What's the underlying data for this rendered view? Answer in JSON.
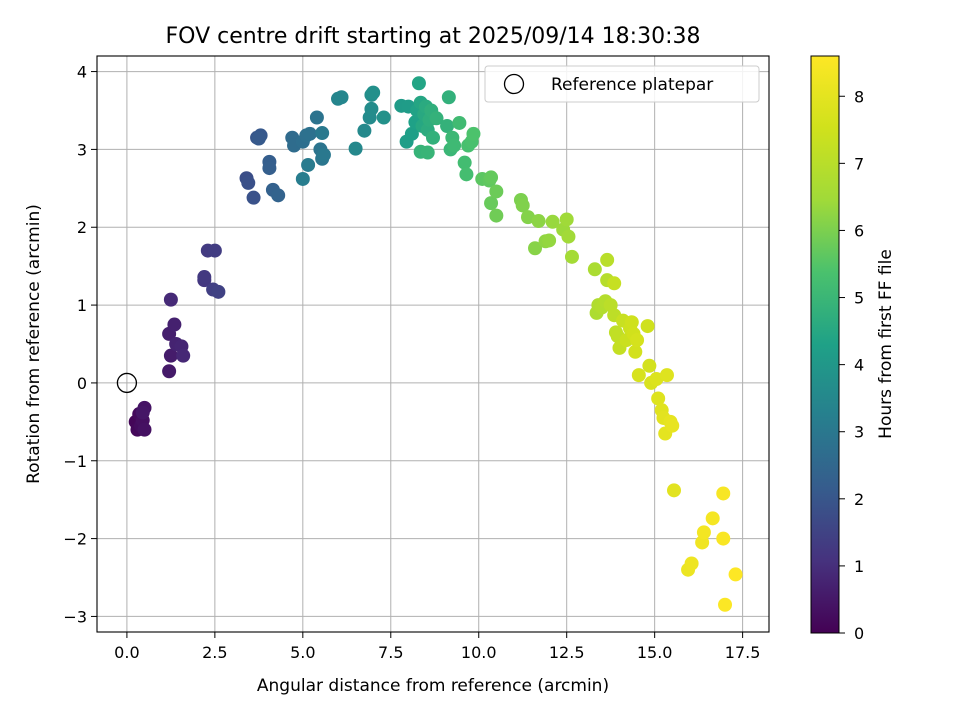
{
  "chart_data": {
    "type": "scatter",
    "title": "FOV centre drift starting at 2025/09/14 18:30:38",
    "xlabel": "Angular distance from reference (arcmin)",
    "ylabel": "Rotation from reference (arcmin)",
    "xlim": [
      -0.85,
      18.25
    ],
    "ylim": [
      -3.2,
      4.2
    ],
    "xticks": [
      0.0,
      2.5,
      5.0,
      7.5,
      10.0,
      12.5,
      15.0,
      17.5
    ],
    "xtick_labels": [
      "0.0",
      "2.5",
      "5.0",
      "7.5",
      "10.0",
      "12.5",
      "15.0",
      "17.5"
    ],
    "yticks": [
      -3,
      -2,
      -1,
      0,
      1,
      2,
      3,
      4
    ],
    "ytick_labels": [
      "−3",
      "−2",
      "−1",
      "0",
      "1",
      "2",
      "3",
      "4"
    ],
    "grid": true,
    "legend": {
      "position": "top-right",
      "label": "Reference platepar",
      "marker": "open-circle"
    },
    "reference_point": {
      "x": 0.0,
      "y": 0.0
    },
    "colorbar": {
      "label": "Hours from first FF file",
      "min": 0,
      "max": 8.6,
      "ticks": [
        0,
        1,
        2,
        3,
        4,
        5,
        6,
        7,
        8
      ],
      "tick_labels": [
        "0",
        "1",
        "2",
        "3",
        "4",
        "5",
        "6",
        "7",
        "8"
      ],
      "colormap": "viridis"
    },
    "points": [
      {
        "x": 0.25,
        "y": -0.5,
        "t": 0.1
      },
      {
        "x": 0.3,
        "y": -0.6,
        "t": 0.15
      },
      {
        "x": 0.35,
        "y": -0.4,
        "t": 0.2
      },
      {
        "x": 0.4,
        "y": -0.55,
        "t": 0.25
      },
      {
        "x": 0.45,
        "y": -0.48,
        "t": 0.3
      },
      {
        "x": 0.5,
        "y": -0.6,
        "t": 0.35
      },
      {
        "x": 0.5,
        "y": -0.32,
        "t": 0.4
      },
      {
        "x": 0.45,
        "y": -0.38,
        "t": 0.45
      },
      {
        "x": 1.2,
        "y": 0.15,
        "t": 0.55
      },
      {
        "x": 1.25,
        "y": 0.35,
        "t": 0.6
      },
      {
        "x": 1.2,
        "y": 0.63,
        "t": 0.65
      },
      {
        "x": 1.35,
        "y": 0.75,
        "t": 0.7
      },
      {
        "x": 1.4,
        "y": 0.5,
        "t": 0.75
      },
      {
        "x": 1.55,
        "y": 0.47,
        "t": 0.8
      },
      {
        "x": 1.6,
        "y": 0.35,
        "t": 0.85
      },
      {
        "x": 1.25,
        "y": 1.07,
        "t": 0.9
      },
      {
        "x": 2.2,
        "y": 1.32,
        "t": 1.2
      },
      {
        "x": 2.2,
        "y": 1.36,
        "t": 1.25
      },
      {
        "x": 2.3,
        "y": 1.7,
        "t": 1.3
      },
      {
        "x": 2.5,
        "y": 1.7,
        "t": 1.35
      },
      {
        "x": 2.45,
        "y": 1.2,
        "t": 1.4
      },
      {
        "x": 2.6,
        "y": 1.17,
        "t": 1.45
      },
      {
        "x": 3.4,
        "y": 2.63,
        "t": 1.8
      },
      {
        "x": 3.45,
        "y": 2.57,
        "t": 1.85
      },
      {
        "x": 3.6,
        "y": 2.38,
        "t": 1.9
      },
      {
        "x": 3.7,
        "y": 3.15,
        "t": 2.0
      },
      {
        "x": 3.8,
        "y": 3.18,
        "t": 2.05
      },
      {
        "x": 3.75,
        "y": 3.14,
        "t": 2.1
      },
      {
        "x": 4.05,
        "y": 2.84,
        "t": 2.2
      },
      {
        "x": 4.05,
        "y": 2.76,
        "t": 2.25
      },
      {
        "x": 4.15,
        "y": 2.48,
        "t": 2.3
      },
      {
        "x": 4.3,
        "y": 2.41,
        "t": 2.35
      },
      {
        "x": 4.7,
        "y": 3.15,
        "t": 2.6
      },
      {
        "x": 4.75,
        "y": 3.05,
        "t": 2.65
      },
      {
        "x": 5.0,
        "y": 3.1,
        "t": 2.7
      },
      {
        "x": 5.1,
        "y": 3.18,
        "t": 2.75
      },
      {
        "x": 5.2,
        "y": 3.2,
        "t": 2.8
      },
      {
        "x": 5.4,
        "y": 3.41,
        "t": 2.85
      },
      {
        "x": 5.5,
        "y": 3.0,
        "t": 2.9
      },
      {
        "x": 5.55,
        "y": 2.88,
        "t": 2.95
      },
      {
        "x": 5.6,
        "y": 2.93,
        "t": 3.0
      },
      {
        "x": 5.55,
        "y": 3.21,
        "t": 3.05
      },
      {
        "x": 5.15,
        "y": 2.8,
        "t": 3.1
      },
      {
        "x": 5.0,
        "y": 2.62,
        "t": 3.15
      },
      {
        "x": 6.0,
        "y": 3.65,
        "t": 3.4
      },
      {
        "x": 6.1,
        "y": 3.67,
        "t": 3.45
      },
      {
        "x": 6.5,
        "y": 3.01,
        "t": 3.5
      },
      {
        "x": 6.75,
        "y": 3.24,
        "t": 3.55
      },
      {
        "x": 6.9,
        "y": 3.41,
        "t": 3.6
      },
      {
        "x": 6.95,
        "y": 3.52,
        "t": 3.65
      },
      {
        "x": 6.95,
        "y": 3.7,
        "t": 3.7
      },
      {
        "x": 7.0,
        "y": 3.73,
        "t": 3.75
      },
      {
        "x": 7.3,
        "y": 3.41,
        "t": 3.8
      },
      {
        "x": 7.8,
        "y": 3.56,
        "t": 4.1
      },
      {
        "x": 8.0,
        "y": 3.55,
        "t": 4.15
      },
      {
        "x": 7.95,
        "y": 3.1,
        "t": 4.2
      },
      {
        "x": 8.1,
        "y": 3.2,
        "t": 4.25
      },
      {
        "x": 8.2,
        "y": 3.35,
        "t": 4.3
      },
      {
        "x": 8.25,
        "y": 3.5,
        "t": 4.35
      },
      {
        "x": 8.3,
        "y": 3.85,
        "t": 4.4
      },
      {
        "x": 8.35,
        "y": 3.6,
        "t": 4.45
      },
      {
        "x": 8.4,
        "y": 3.3,
        "t": 4.5
      },
      {
        "x": 8.45,
        "y": 3.45,
        "t": 4.55
      },
      {
        "x": 8.5,
        "y": 3.55,
        "t": 4.6
      },
      {
        "x": 8.55,
        "y": 3.25,
        "t": 4.65
      },
      {
        "x": 8.6,
        "y": 3.38,
        "t": 4.7
      },
      {
        "x": 8.65,
        "y": 3.5,
        "t": 4.75
      },
      {
        "x": 8.7,
        "y": 3.15,
        "t": 4.8
      },
      {
        "x": 8.8,
        "y": 3.4,
        "t": 4.85
      },
      {
        "x": 8.35,
        "y": 2.97,
        "t": 4.9
      },
      {
        "x": 8.55,
        "y": 2.96,
        "t": 4.95
      },
      {
        "x": 9.15,
        "y": 3.67,
        "t": 4.8
      },
      {
        "x": 9.1,
        "y": 3.3,
        "t": 4.85
      },
      {
        "x": 9.2,
        "y": 3.0,
        "t": 5.0
      },
      {
        "x": 9.25,
        "y": 3.15,
        "t": 5.05
      },
      {
        "x": 9.3,
        "y": 3.05,
        "t": 5.1
      },
      {
        "x": 9.45,
        "y": 3.34,
        "t": 5.15
      },
      {
        "x": 9.6,
        "y": 2.83,
        "t": 5.2
      },
      {
        "x": 9.65,
        "y": 2.68,
        "t": 5.25
      },
      {
        "x": 9.7,
        "y": 3.05,
        "t": 5.3
      },
      {
        "x": 9.8,
        "y": 3.1,
        "t": 5.35
      },
      {
        "x": 9.85,
        "y": 3.2,
        "t": 5.4
      },
      {
        "x": 10.1,
        "y": 2.62,
        "t": 5.6
      },
      {
        "x": 10.3,
        "y": 2.6,
        "t": 5.65
      },
      {
        "x": 10.35,
        "y": 2.64,
        "t": 5.7
      },
      {
        "x": 10.35,
        "y": 2.31,
        "t": 5.75
      },
      {
        "x": 10.5,
        "y": 2.46,
        "t": 5.8
      },
      {
        "x": 10.5,
        "y": 2.15,
        "t": 5.85
      },
      {
        "x": 11.2,
        "y": 2.35,
        "t": 6.0
      },
      {
        "x": 11.25,
        "y": 2.28,
        "t": 6.05
      },
      {
        "x": 11.4,
        "y": 2.13,
        "t": 6.1
      },
      {
        "x": 11.6,
        "y": 1.73,
        "t": 6.15
      },
      {
        "x": 11.7,
        "y": 2.08,
        "t": 6.2
      },
      {
        "x": 11.9,
        "y": 1.82,
        "t": 6.25
      },
      {
        "x": 12.0,
        "y": 1.83,
        "t": 6.3
      },
      {
        "x": 12.1,
        "y": 2.07,
        "t": 6.35
      },
      {
        "x": 12.4,
        "y": 1.97,
        "t": 6.4
      },
      {
        "x": 12.5,
        "y": 2.1,
        "t": 6.45
      },
      {
        "x": 12.55,
        "y": 1.88,
        "t": 6.5
      },
      {
        "x": 12.65,
        "y": 1.62,
        "t": 6.55
      },
      {
        "x": 13.3,
        "y": 1.46,
        "t": 6.7
      },
      {
        "x": 13.35,
        "y": 0.9,
        "t": 6.75
      },
      {
        "x": 13.4,
        "y": 1.0,
        "t": 6.8
      },
      {
        "x": 13.5,
        "y": 0.97,
        "t": 6.85
      },
      {
        "x": 13.6,
        "y": 1.05,
        "t": 6.9
      },
      {
        "x": 13.65,
        "y": 1.32,
        "t": 6.95
      },
      {
        "x": 13.65,
        "y": 1.58,
        "t": 7.0
      },
      {
        "x": 13.75,
        "y": 1.0,
        "t": 7.05
      },
      {
        "x": 13.85,
        "y": 0.87,
        "t": 7.1
      },
      {
        "x": 13.9,
        "y": 0.65,
        "t": 7.15
      },
      {
        "x": 13.95,
        "y": 0.6,
        "t": 7.2
      },
      {
        "x": 14.0,
        "y": 0.45,
        "t": 7.25
      },
      {
        "x": 13.85,
        "y": 1.28,
        "t": 7.3
      },
      {
        "x": 14.1,
        "y": 0.8,
        "t": 7.35
      },
      {
        "x": 14.2,
        "y": 0.55,
        "t": 7.4
      },
      {
        "x": 14.3,
        "y": 0.7,
        "t": 7.45
      },
      {
        "x": 14.35,
        "y": 0.78,
        "t": 7.5
      },
      {
        "x": 14.4,
        "y": 0.63,
        "t": 7.55
      },
      {
        "x": 14.45,
        "y": 0.4,
        "t": 7.6
      },
      {
        "x": 14.5,
        "y": 0.55,
        "t": 7.65
      },
      {
        "x": 14.55,
        "y": 0.1,
        "t": 7.7
      },
      {
        "x": 14.8,
        "y": 0.73,
        "t": 7.5
      },
      {
        "x": 14.85,
        "y": 0.22,
        "t": 7.6
      },
      {
        "x": 14.9,
        "y": 0.0,
        "t": 7.75
      },
      {
        "x": 15.05,
        "y": 0.05,
        "t": 7.8
      },
      {
        "x": 15.1,
        "y": -0.2,
        "t": 7.85
      },
      {
        "x": 15.2,
        "y": -0.35,
        "t": 7.9
      },
      {
        "x": 15.25,
        "y": -0.45,
        "t": 7.95
      },
      {
        "x": 15.3,
        "y": -0.65,
        "t": 8.0
      },
      {
        "x": 15.35,
        "y": 0.1,
        "t": 7.85
      },
      {
        "x": 15.45,
        "y": -0.5,
        "t": 8.05
      },
      {
        "x": 15.5,
        "y": -0.55,
        "t": 8.1
      },
      {
        "x": 15.55,
        "y": -1.38,
        "t": 7.95
      },
      {
        "x": 15.95,
        "y": -2.4,
        "t": 8.2
      },
      {
        "x": 16.05,
        "y": -2.32,
        "t": 8.25
      },
      {
        "x": 16.35,
        "y": -2.05,
        "t": 8.3
      },
      {
        "x": 16.4,
        "y": -1.92,
        "t": 8.35
      },
      {
        "x": 16.65,
        "y": -1.74,
        "t": 8.4
      },
      {
        "x": 16.95,
        "y": -1.42,
        "t": 8.45
      },
      {
        "x": 16.95,
        "y": -2.0,
        "t": 8.5
      },
      {
        "x": 17.0,
        "y": -2.85,
        "t": 8.55
      },
      {
        "x": 17.3,
        "y": -2.46,
        "t": 8.6
      }
    ]
  }
}
